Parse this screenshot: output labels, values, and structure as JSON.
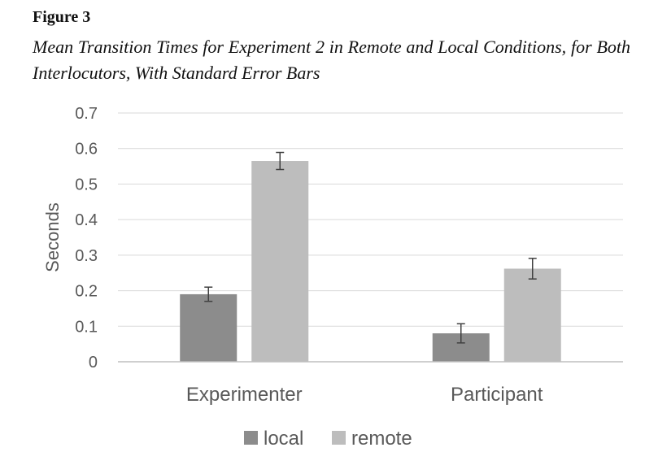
{
  "figure": {
    "label": "Figure 3",
    "title": "Mean Transition Times for Experiment 2 in Remote and Local Conditions, for Both Interlocutors, With Standard Error Bars"
  },
  "chart_data": {
    "type": "bar",
    "categories": [
      "Experimenter",
      "Participant"
    ],
    "series": [
      {
        "name": "local",
        "values": [
          0.19,
          0.08
        ],
        "errors": [
          0.02,
          0.027
        ],
        "color": "#8c8c8c"
      },
      {
        "name": "remote",
        "values": [
          0.565,
          0.262
        ],
        "errors": [
          0.024,
          0.029
        ],
        "color": "#bdbdbd"
      }
    ],
    "ylabel": "Seconds",
    "ylim": [
      0,
      0.7
    ],
    "yticks": [
      "0",
      "0.1",
      "0.2",
      "0.3",
      "0.4",
      "0.5",
      "0.6",
      "0.7"
    ],
    "grid": true,
    "legend": "bottom"
  }
}
